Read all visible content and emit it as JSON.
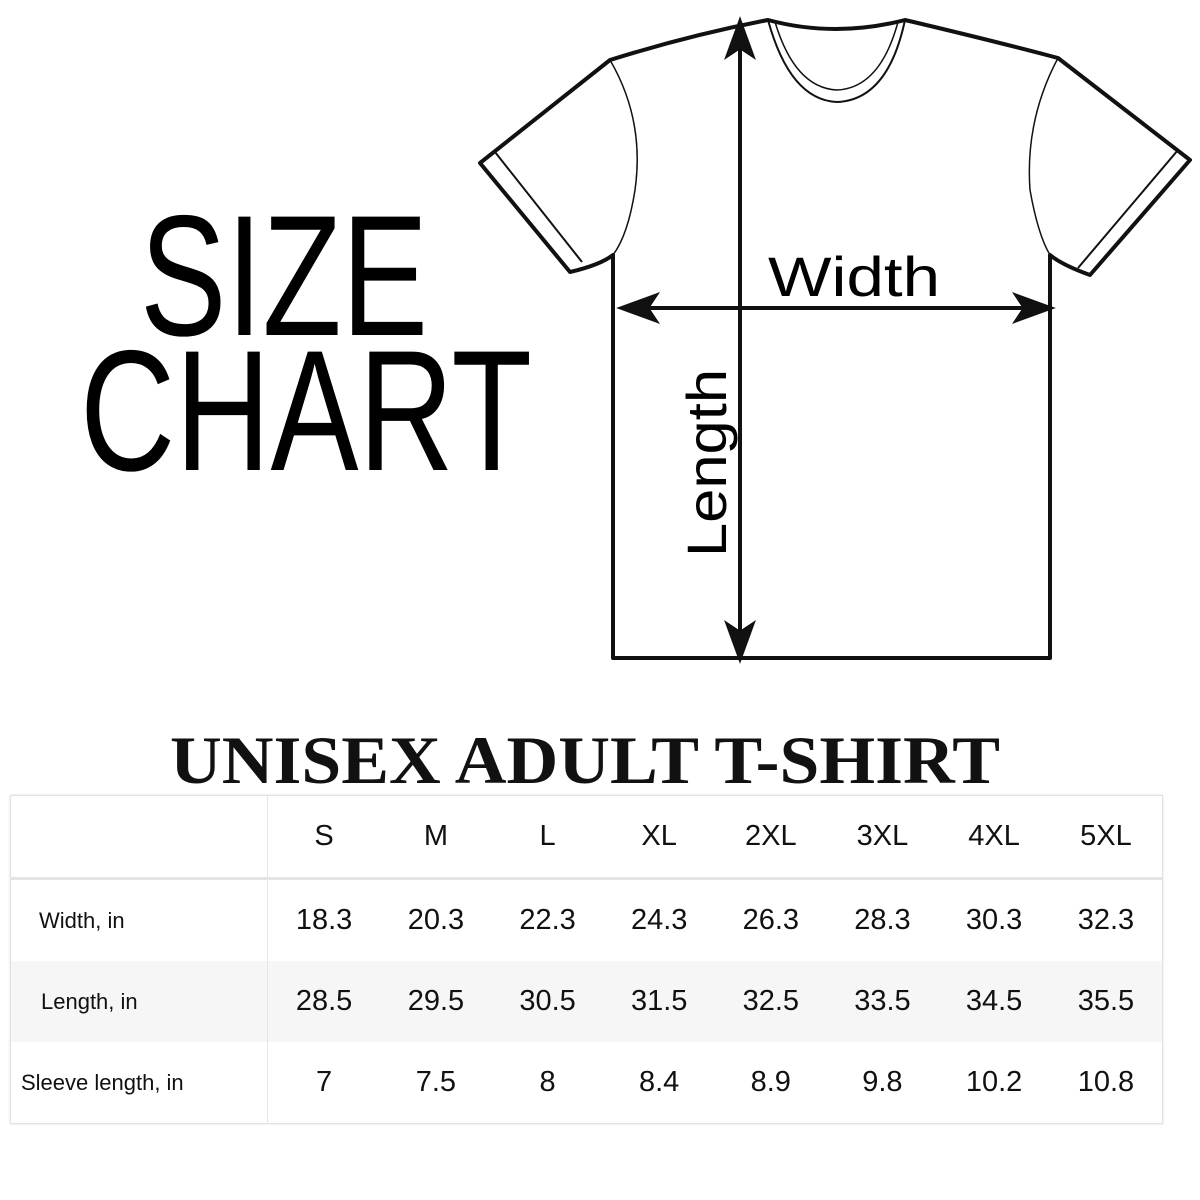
{
  "heading": {
    "line1": "SIZE",
    "line2": "CHART"
  },
  "diagram": {
    "width_label": "Width",
    "length_label": "Length"
  },
  "table_title": "UNISEX ADULT T-SHIRT",
  "table": {
    "sizes": [
      "S",
      "M",
      "L",
      "XL",
      "2XL",
      "3XL",
      "4XL",
      "5XL"
    ],
    "rows": [
      {
        "label": "Width, in",
        "values": [
          "18.3",
          "20.3",
          "22.3",
          "24.3",
          "26.3",
          "28.3",
          "30.3",
          "32.3"
        ]
      },
      {
        "label": "Length, in",
        "values": [
          "28.5",
          "29.5",
          "30.5",
          "31.5",
          "32.5",
          "33.5",
          "34.5",
          "35.5"
        ]
      },
      {
        "label": "Sleeve length, in",
        "values": [
          "7",
          "7.5",
          "8",
          "8.4",
          "8.9",
          "9.8",
          "10.2",
          "10.8"
        ]
      }
    ]
  }
}
